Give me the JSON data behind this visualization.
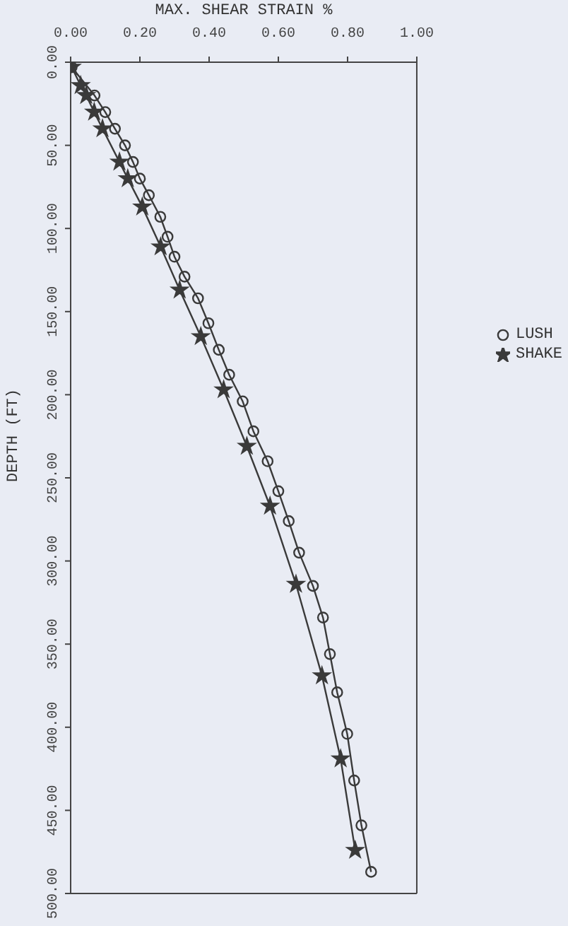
{
  "chart_data": {
    "type": "line",
    "xlabel": "MAX. SHEAR STRAIN %",
    "ylabel": "DEPTH (FT)",
    "xlim": [
      0,
      1
    ],
    "xticks": [
      {
        "value": 0,
        "label": "0.00"
      },
      {
        "value": 0.2,
        "label": "0.20"
      },
      {
        "value": 0.4,
        "label": "0.40"
      },
      {
        "value": 0.6,
        "label": "0.60"
      },
      {
        "value": 0.8,
        "label": "0.80"
      },
      {
        "value": 1,
        "label": "1.00"
      }
    ],
    "ylim": [
      500,
      0
    ],
    "yticks": [
      {
        "value": 0,
        "label": "0.00"
      },
      {
        "value": 50,
        "label": "50.00"
      },
      {
        "value": 100,
        "label": "100.00"
      },
      {
        "value": 150,
        "label": "150.00"
      },
      {
        "value": 200,
        "label": "200.00"
      },
      {
        "value": 250,
        "label": "250.00"
      },
      {
        "value": 300,
        "label": "300.00"
      },
      {
        "value": 350,
        "label": "350.00"
      },
      {
        "value": 400,
        "label": "400.00"
      },
      {
        "value": 450,
        "label": "450.00"
      },
      {
        "value": 500,
        "label": "500.00"
      }
    ],
    "legend": "right",
    "series": [
      {
        "name": "LUSH",
        "color": "#3a3a3a",
        "marker": "circle",
        "x": [
          0.003,
          0.069,
          0.1,
          0.128,
          0.157,
          0.18,
          0.2,
          0.226,
          0.259,
          0.28,
          0.3,
          0.329,
          0.368,
          0.398,
          0.428,
          0.458,
          0.497,
          0.528,
          0.569,
          0.6,
          0.63,
          0.66,
          0.7,
          0.729,
          0.749,
          0.77,
          0.799,
          0.819,
          0.84,
          0.868
        ],
        "values": [
          3,
          20,
          30,
          40,
          50,
          60,
          70,
          80,
          93,
          105,
          117,
          129,
          142,
          157,
          173,
          188,
          204,
          222,
          240,
          258,
          276,
          295,
          315,
          334,
          356,
          379,
          404,
          432,
          459,
          487
        ]
      },
      {
        "name": "SHAKE",
        "color": "#3a3a3a",
        "marker": "star",
        "x": [
          0.003,
          0.029,
          0.045,
          0.068,
          0.092,
          0.141,
          0.165,
          0.207,
          0.26,
          0.315,
          0.376,
          0.442,
          0.509,
          0.576,
          0.651,
          0.726,
          0.78,
          0.822
        ],
        "values": [
          3,
          14,
          20,
          30,
          40,
          60,
          70,
          87,
          111,
          137,
          165,
          197,
          231,
          267,
          314,
          369,
          419,
          474
        ]
      }
    ]
  }
}
